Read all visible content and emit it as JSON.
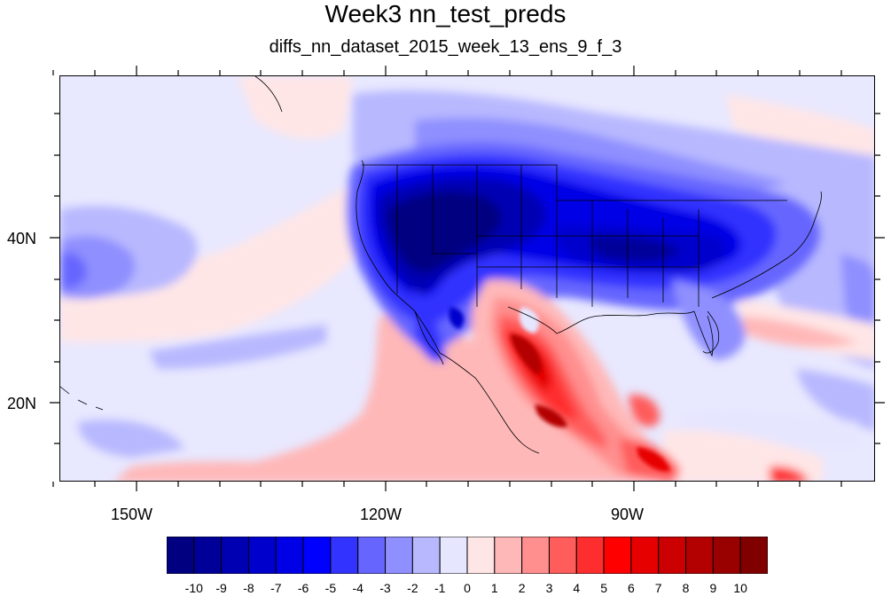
{
  "title": "Week3 nn_test_preds",
  "subtitle": "diffs_nn_dataset_2015_week_13_ens_9_f_3",
  "axes": {
    "x_ticks": [
      {
        "label": "150W",
        "lon": -150
      },
      {
        "label": "120W",
        "lon": -120
      },
      {
        "label": "90W",
        "lon": -90
      }
    ],
    "y_ticks": [
      {
        "label": "40N",
        "lat": 40
      },
      {
        "label": "20N",
        "lat": 20
      }
    ],
    "lon_range": [
      -159.3,
      -61.3
    ],
    "lat_range": [
      10,
      59.5
    ]
  },
  "colorbar": {
    "labels": [
      "-10",
      "-9",
      "-8",
      "-7",
      "-6",
      "-5",
      "-4",
      "-3",
      "-2",
      "-1",
      "0",
      "1",
      "2",
      "3",
      "4",
      "5",
      "6",
      "7",
      "8",
      "9",
      "10"
    ],
    "colors": [
      "#000080",
      "#000099",
      "#0000b3",
      "#0000cc",
      "#0000e6",
      "#0000ff",
      "#3333ff",
      "#6666ff",
      "#8f8fff",
      "#b8b8ff",
      "#e6e6ff",
      "#ffe6e6",
      "#ffb8b8",
      "#ff8f8f",
      "#ff5c5c",
      "#ff2e2e",
      "#ff0000",
      "#e60000",
      "#cc0000",
      "#b30000",
      "#990000",
      "#800000"
    ]
  },
  "colors": {
    "ocean_background": "#e8e8ff",
    "coastline": "#000000"
  }
}
